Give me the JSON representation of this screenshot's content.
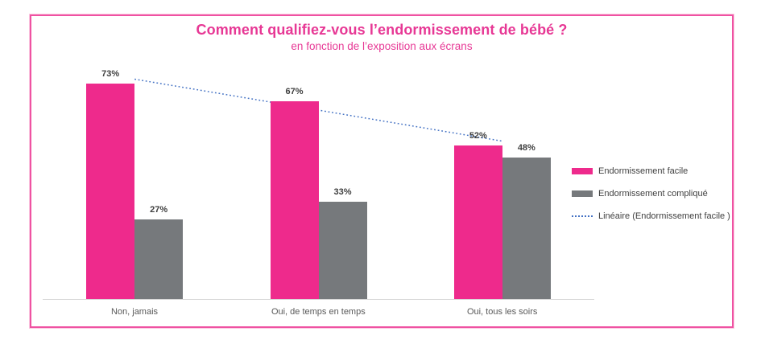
{
  "frame": {
    "border_color": "#EF52A2"
  },
  "chart_data": {
    "type": "bar",
    "title": "Comment qualifiez-vous l’endormissement de bébé ?",
    "subtitle": "en fonction de l’exposition aux écrans",
    "categories": [
      "Non, jamais",
      "Oui, de temps en temps",
      "Oui, tous les soirs"
    ],
    "series": [
      {
        "name": "Endormissement facile",
        "values": [
          73,
          67,
          52
        ],
        "color": "#EE2A8C"
      },
      {
        "name": "Endormissement compliqué",
        "values": [
          27,
          33,
          48
        ],
        "color": "#76797C"
      }
    ],
    "value_labels": [
      [
        "73%",
        "67%",
        "52%"
      ],
      [
        "27%",
        "33%",
        "48%"
      ]
    ],
    "trendline": {
      "label": "Linéaire (Endormissement facile )",
      "applies_to": "Endormissement facile",
      "color": "#4472C4",
      "style": "dotted",
      "endpoints_pct": [
        74.5,
        53.5
      ]
    },
    "ylim": [
      0,
      100
    ],
    "grid": false,
    "legend_position": "right",
    "axis_color": "#D6D6D6",
    "title_color": "#E73895",
    "value_label_color": "#3F3F3F",
    "category_label_color": "#595959"
  }
}
